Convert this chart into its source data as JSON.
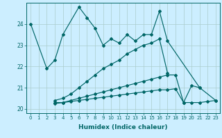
{
  "xlabel": "Humidex (Indice chaleur)",
  "background_color": "#cceeff",
  "grid_color": "#aacccc",
  "line_color": "#006666",
  "ylim": [
    19.8,
    25.0
  ],
  "yticks": [
    20,
    21,
    22,
    23,
    24
  ],
  "xlim": [
    -0.5,
    23.5
  ],
  "xticks": [
    0,
    1,
    2,
    3,
    4,
    5,
    6,
    7,
    8,
    9,
    10,
    11,
    12,
    13,
    14,
    15,
    16,
    17,
    18,
    19,
    20,
    21,
    22,
    23
  ],
  "line1_x": [
    0,
    2,
    3,
    4,
    6,
    7,
    8,
    9,
    10,
    11,
    12,
    13,
    14,
    15,
    16,
    17,
    21
  ],
  "line1_y": [
    24.0,
    21.9,
    22.3,
    23.5,
    24.8,
    24.3,
    23.8,
    23.0,
    23.3,
    23.1,
    23.5,
    23.2,
    23.5,
    23.5,
    24.6,
    23.2,
    21.0
  ],
  "line2_x": [
    3,
    4,
    5,
    6,
    7,
    8,
    9,
    10,
    11,
    12,
    13,
    14,
    15,
    16,
    17
  ],
  "line2_y": [
    20.4,
    20.5,
    20.7,
    21.0,
    21.3,
    21.6,
    21.9,
    22.1,
    22.3,
    22.6,
    22.8,
    23.0,
    23.1,
    23.3,
    21.7
  ],
  "line3_x": [
    3,
    4,
    5,
    6,
    7,
    8,
    9,
    10,
    11,
    12,
    13,
    14,
    15,
    16,
    17,
    18,
    19,
    20,
    21,
    23
  ],
  "line3_y": [
    20.3,
    20.3,
    20.4,
    20.5,
    20.6,
    20.7,
    20.8,
    20.9,
    21.0,
    21.1,
    21.2,
    21.3,
    21.4,
    21.5,
    21.6,
    21.6,
    20.3,
    21.1,
    21.0,
    20.4
  ],
  "line4_x": [
    3,
    4,
    5,
    6,
    7,
    8,
    9,
    10,
    11,
    12,
    13,
    14,
    15,
    16,
    17,
    18,
    19,
    20,
    21,
    22,
    23
  ],
  "line4_y": [
    20.25,
    20.3,
    20.35,
    20.4,
    20.45,
    20.5,
    20.55,
    20.6,
    20.65,
    20.7,
    20.75,
    20.8,
    20.85,
    20.9,
    20.9,
    20.95,
    20.3,
    20.3,
    20.3,
    20.35,
    20.4
  ]
}
